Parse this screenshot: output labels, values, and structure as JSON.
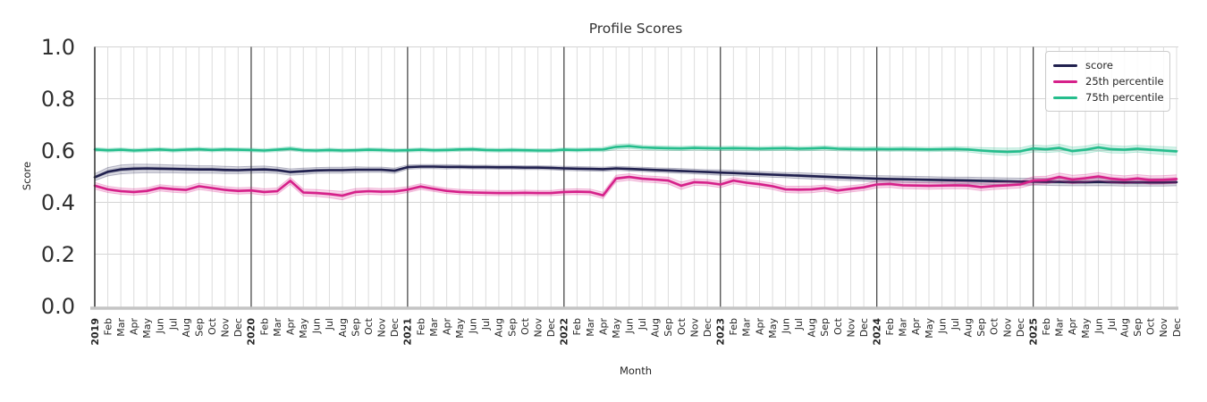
{
  "title": "Profile Scores",
  "axes": {
    "xlabel": "Month",
    "ylabel": "Score",
    "yticks": [
      {
        "label": "0.0",
        "value": 0.0
      },
      {
        "label": "0.2",
        "value": 0.2
      },
      {
        "label": "0.4",
        "value": 0.4
      },
      {
        "label": "0.6",
        "value": 0.6
      },
      {
        "label": "0.8",
        "value": 0.8
      },
      {
        "label": "1.0",
        "value": 1.0
      }
    ],
    "ylim": [
      0.0,
      1.0
    ]
  },
  "legend": {
    "items": [
      {
        "label": "score",
        "color": "#20204e"
      },
      {
        "label": "25th percentile",
        "color": "#d6218a"
      },
      {
        "label": "75th percentile",
        "color": "#25bd8c"
      }
    ]
  },
  "colors": {
    "accent_navy": "#20204e",
    "accent_magenta": "#d6218a",
    "accent_green": "#25bd8c",
    "year_gridline": "#3b3b3b",
    "month_gridline": "#dcdcdc",
    "horizontal_gridline": "#d4d4d4",
    "left_spine": "#303030",
    "bottom_spine": "#c4c4c4",
    "text": "#262626",
    "legend_border": "#cccccc"
  },
  "chart_data": {
    "type": "line",
    "title": "Profile Scores",
    "xlabel": "Month",
    "ylabel": "Score",
    "ylim": [
      0.0,
      1.0
    ],
    "grid": true,
    "legend_position": "upper right",
    "x_tick_labels": [
      "2019",
      "Feb",
      "Mar",
      "Apr",
      "May",
      "Jun",
      "Jul",
      "Aug",
      "Sep",
      "Oct",
      "Nov",
      "Dec",
      "2020",
      "Feb",
      "Mar",
      "Apr",
      "May",
      "Jun",
      "Jul",
      "Aug",
      "Sep",
      "Oct",
      "Nov",
      "Dec",
      "2021",
      "Feb",
      "Mar",
      "Apr",
      "May",
      "Jun",
      "Jul",
      "Aug",
      "Sep",
      "Oct",
      "Nov",
      "Dec",
      "2022",
      "Feb",
      "Mar",
      "Apr",
      "May",
      "Jun",
      "Jul",
      "Aug",
      "Sep",
      "Oct",
      "Nov",
      "Dec",
      "2023",
      "Feb",
      "Mar",
      "Apr",
      "May",
      "Jun",
      "Jul",
      "Aug",
      "Sep",
      "Oct",
      "Nov",
      "Dec",
      "2024",
      "Feb",
      "Mar",
      "Apr",
      "May",
      "Jun",
      "Jul",
      "Aug",
      "Sep",
      "Oct",
      "Nov",
      "Dec",
      "2025",
      "Feb",
      "Mar",
      "Apr",
      "May",
      "Jun",
      "Jul",
      "Aug",
      "Sep",
      "Oct",
      "Nov",
      "Dec"
    ],
    "series": [
      {
        "name": "score",
        "color": "#20204e",
        "values": [
          0.497,
          0.518,
          0.527,
          0.53,
          0.531,
          0.53,
          0.529,
          0.528,
          0.527,
          0.527,
          0.525,
          0.524,
          0.526,
          0.527,
          0.524,
          0.517,
          0.52,
          0.523,
          0.524,
          0.524,
          0.526,
          0.526,
          0.526,
          0.522,
          0.536,
          0.538,
          0.538,
          0.537,
          0.537,
          0.536,
          0.536,
          0.535,
          0.535,
          0.534,
          0.534,
          0.533,
          0.531,
          0.53,
          0.529,
          0.528,
          0.531,
          0.529,
          0.527,
          0.525,
          0.523,
          0.521,
          0.519,
          0.517,
          0.515,
          0.513,
          0.511,
          0.509,
          0.507,
          0.505,
          0.503,
          0.501,
          0.499,
          0.497,
          0.495,
          0.493,
          0.491,
          0.49,
          0.489,
          0.488,
          0.487,
          0.486,
          0.485,
          0.484,
          0.483,
          0.482,
          0.481,
          0.48,
          0.48,
          0.479,
          0.479,
          0.478,
          0.478,
          0.479,
          0.478,
          0.477,
          0.477,
          0.477,
          0.477,
          0.478
        ],
        "band_halfwidth": [
          0.013,
          0.016,
          0.017,
          0.017,
          0.016,
          0.016,
          0.015,
          0.015,
          0.014,
          0.014,
          0.014,
          0.013,
          0.013,
          0.013,
          0.012,
          0.012,
          0.012,
          0.011,
          0.011,
          0.011,
          0.011,
          0.01,
          0.01,
          0.01,
          0.008,
          0.008,
          0.008,
          0.008,
          0.007,
          0.007,
          0.007,
          0.007,
          0.007,
          0.007,
          0.007,
          0.007,
          0.008,
          0.008,
          0.008,
          0.008,
          0.008,
          0.008,
          0.008,
          0.008,
          0.009,
          0.009,
          0.009,
          0.009,
          0.01,
          0.01,
          0.01,
          0.01,
          0.01,
          0.01,
          0.011,
          0.011,
          0.011,
          0.011,
          0.011,
          0.011,
          0.012,
          0.012,
          0.012,
          0.012,
          0.012,
          0.012,
          0.012,
          0.013,
          0.013,
          0.013,
          0.013,
          0.013,
          0.013,
          0.013,
          0.014,
          0.014,
          0.014,
          0.014,
          0.014,
          0.014,
          0.014,
          0.014,
          0.014,
          0.014
        ]
      },
      {
        "name": "25th percentile",
        "color": "#d6218a",
        "values": [
          0.464,
          0.45,
          0.443,
          0.44,
          0.444,
          0.456,
          0.451,
          0.448,
          0.462,
          0.455,
          0.448,
          0.444,
          0.446,
          0.44,
          0.443,
          0.483,
          0.438,
          0.436,
          0.432,
          0.426,
          0.44,
          0.443,
          0.441,
          0.442,
          0.449,
          0.461,
          0.452,
          0.444,
          0.44,
          0.438,
          0.437,
          0.436,
          0.436,
          0.437,
          0.436,
          0.436,
          0.44,
          0.441,
          0.44,
          0.427,
          0.492,
          0.498,
          0.491,
          0.488,
          0.484,
          0.464,
          0.478,
          0.476,
          0.469,
          0.484,
          0.476,
          0.47,
          0.462,
          0.45,
          0.449,
          0.45,
          0.455,
          0.446,
          0.452,
          0.458,
          0.469,
          0.471,
          0.466,
          0.465,
          0.464,
          0.465,
          0.466,
          0.465,
          0.459,
          0.463,
          0.466,
          0.469,
          0.484,
          0.486,
          0.498,
          0.488,
          0.493,
          0.5,
          0.491,
          0.487,
          0.492,
          0.486,
          0.487,
          0.49
        ],
        "band_halfwidth": [
          0.013,
          0.012,
          0.012,
          0.012,
          0.012,
          0.012,
          0.012,
          0.012,
          0.012,
          0.012,
          0.012,
          0.012,
          0.012,
          0.012,
          0.012,
          0.013,
          0.013,
          0.013,
          0.014,
          0.016,
          0.013,
          0.012,
          0.012,
          0.012,
          0.011,
          0.011,
          0.01,
          0.01,
          0.01,
          0.01,
          0.01,
          0.01,
          0.01,
          0.01,
          0.01,
          0.01,
          0.011,
          0.011,
          0.011,
          0.012,
          0.013,
          0.012,
          0.012,
          0.012,
          0.013,
          0.014,
          0.012,
          0.012,
          0.012,
          0.012,
          0.012,
          0.012,
          0.012,
          0.012,
          0.013,
          0.013,
          0.012,
          0.013,
          0.012,
          0.012,
          0.013,
          0.013,
          0.013,
          0.013,
          0.013,
          0.013,
          0.013,
          0.013,
          0.014,
          0.013,
          0.013,
          0.013,
          0.015,
          0.015,
          0.015,
          0.016,
          0.015,
          0.015,
          0.015,
          0.015,
          0.015,
          0.016,
          0.016,
          0.016
        ]
      },
      {
        "name": "75th percentile",
        "color": "#25bd8c",
        "values": [
          0.604,
          0.601,
          0.603,
          0.6,
          0.602,
          0.604,
          0.601,
          0.603,
          0.605,
          0.602,
          0.604,
          0.603,
          0.602,
          0.6,
          0.603,
          0.607,
          0.601,
          0.6,
          0.602,
          0.6,
          0.601,
          0.603,
          0.602,
          0.6,
          0.601,
          0.603,
          0.601,
          0.602,
          0.604,
          0.605,
          0.602,
          0.601,
          0.602,
          0.601,
          0.6,
          0.6,
          0.603,
          0.602,
          0.603,
          0.604,
          0.614,
          0.617,
          0.612,
          0.61,
          0.609,
          0.608,
          0.61,
          0.609,
          0.608,
          0.609,
          0.608,
          0.607,
          0.608,
          0.609,
          0.607,
          0.608,
          0.61,
          0.607,
          0.606,
          0.605,
          0.606,
          0.605,
          0.606,
          0.605,
          0.604,
          0.605,
          0.606,
          0.604,
          0.6,
          0.597,
          0.595,
          0.597,
          0.608,
          0.605,
          0.61,
          0.598,
          0.603,
          0.612,
          0.605,
          0.603,
          0.607,
          0.603,
          0.6,
          0.597
        ],
        "band_halfwidth": [
          0.007,
          0.007,
          0.007,
          0.007,
          0.007,
          0.007,
          0.007,
          0.007,
          0.007,
          0.007,
          0.007,
          0.007,
          0.007,
          0.007,
          0.007,
          0.008,
          0.007,
          0.007,
          0.007,
          0.007,
          0.007,
          0.007,
          0.007,
          0.007,
          0.007,
          0.007,
          0.007,
          0.007,
          0.007,
          0.007,
          0.007,
          0.007,
          0.007,
          0.007,
          0.007,
          0.007,
          0.007,
          0.007,
          0.007,
          0.008,
          0.009,
          0.009,
          0.008,
          0.008,
          0.008,
          0.008,
          0.008,
          0.008,
          0.008,
          0.008,
          0.008,
          0.008,
          0.008,
          0.008,
          0.008,
          0.008,
          0.008,
          0.008,
          0.008,
          0.008,
          0.008,
          0.008,
          0.008,
          0.008,
          0.008,
          0.008,
          0.009,
          0.009,
          0.011,
          0.013,
          0.014,
          0.013,
          0.013,
          0.013,
          0.014,
          0.015,
          0.014,
          0.014,
          0.014,
          0.013,
          0.013,
          0.014,
          0.015,
          0.015
        ]
      }
    ]
  }
}
